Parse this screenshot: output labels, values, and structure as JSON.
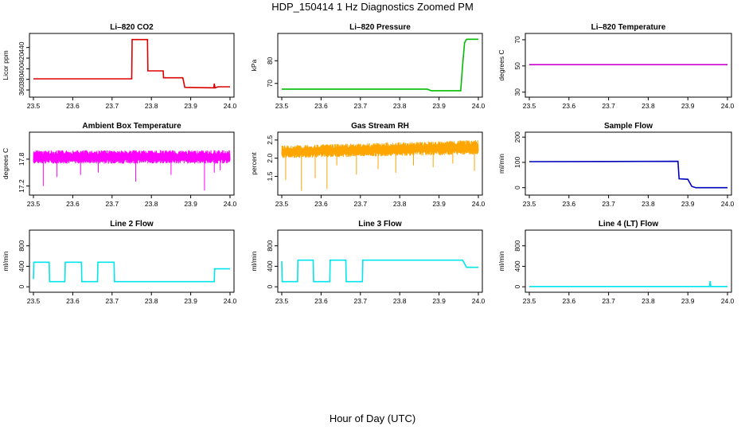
{
  "title": "HDP_150414  1 Hz Diagnostics Zoomed PM",
  "xlabel": "Hour of Day (UTC)",
  "chart_data": [
    {
      "type": "line",
      "title": "Li–820 CO2",
      "ylabel": "Licor ppm",
      "color": "#dd0000",
      "xlim": [
        23.5,
        24.0
      ],
      "ylim": [
        351,
        462
      ],
      "xticks": [
        23.5,
        23.6,
        23.7,
        23.8,
        23.9,
        24.0
      ],
      "xtick_labels": [
        "23.5",
        "23.6",
        "23.7",
        "23.8",
        "23.9",
        "24.0"
      ],
      "yticks": [
        360,
        380,
        400,
        420,
        440
      ],
      "ytick_labels": [
        "360",
        "380",
        "400",
        "420",
        "440"
      ],
      "series": [
        {
          "x": [
            23.5,
            23.75,
            23.751,
            23.79,
            23.791,
            23.83,
            23.831,
            23.88,
            23.885,
            23.959,
            23.96,
            23.962,
            23.97,
            24.0
          ],
          "y": [
            381,
            381,
            455,
            455,
            396,
            396,
            383,
            383,
            365,
            364,
            372,
            364,
            366,
            366
          ]
        }
      ]
    },
    {
      "type": "line",
      "title": "Li–820 Pressure",
      "ylabel": "kPa",
      "color": "#00bb00",
      "xlim": [
        23.5,
        24.0
      ],
      "ylim": [
        65,
        91
      ],
      "xticks": [
        23.5,
        23.6,
        23.7,
        23.8,
        23.9,
        24.0
      ],
      "xtick_labels": [
        "23.5",
        "23.6",
        "23.7",
        "23.8",
        "23.9",
        "24.0"
      ],
      "yticks": [
        70,
        80
      ],
      "ytick_labels": [
        "70",
        "80"
      ],
      "series": [
        {
          "x": [
            23.5,
            23.87,
            23.88,
            23.955,
            23.96,
            23.965,
            23.97,
            24.0
          ],
          "y": [
            67.5,
            67.5,
            66.8,
            66.8,
            78,
            88,
            89.5,
            89.5
          ]
        }
      ]
    },
    {
      "type": "line",
      "title": "Li–820 Temperature",
      "ylabel": "degrees C",
      "color": "#cc00cc",
      "xlim": [
        23.5,
        24.0
      ],
      "ylim": [
        28,
        73
      ],
      "xticks": [
        23.5,
        23.6,
        23.7,
        23.8,
        23.9,
        24.0
      ],
      "xtick_labels": [
        "23.5",
        "23.6",
        "23.7",
        "23.8",
        "23.9",
        "24.0"
      ],
      "yticks": [
        30,
        50,
        70
      ],
      "ytick_labels": [
        "30",
        "50",
        "70"
      ],
      "series": [
        {
          "x": [
            23.5,
            24.0
          ],
          "y": [
            51,
            51
          ]
        }
      ]
    },
    {
      "type": "line",
      "title": "Ambient Box Temperature",
      "ylabel": "degrees C",
      "color": "#ff00ff",
      "xlim": [
        23.5,
        24.0
      ],
      "ylim": [
        17.05,
        18.35
      ],
      "xticks": [
        23.5,
        23.6,
        23.7,
        23.8,
        23.9,
        24.0
      ],
      "xtick_labels": [
        "23.5",
        "23.6",
        "23.7",
        "23.8",
        "23.9",
        "24.0"
      ],
      "yticks": [
        17.2,
        17.8
      ],
      "ytick_labels": [
        "17.2",
        "17.8"
      ],
      "series": [
        {
          "x": [
            23.5,
            24.0
          ],
          "band_low": 17.7,
          "band_high": 18.0,
          "mean": 17.85,
          "spikes": [
            [
              23.525,
              17.2
            ],
            [
              23.56,
              17.4
            ],
            [
              23.62,
              17.45
            ],
            [
              23.665,
              17.5
            ],
            [
              23.76,
              17.3
            ],
            [
              23.85,
              17.45
            ],
            [
              23.935,
              17.1
            ],
            [
              23.96,
              17.5
            ],
            [
              23.975,
              17.55
            ]
          ]
        }
      ]
    },
    {
      "type": "line",
      "title": "Gas Stream RH",
      "ylabel": "percent",
      "color": "#ffa500",
      "xlim": [
        23.5,
        24.0
      ],
      "ylim": [
        1.05,
        2.65
      ],
      "xticks": [
        23.5,
        23.6,
        23.7,
        23.8,
        23.9,
        24.0
      ],
      "xtick_labels": [
        "23.5",
        "23.6",
        "23.7",
        "23.8",
        "23.9",
        "24.0"
      ],
      "yticks": [
        1.5,
        2.0,
        2.5
      ],
      "ytick_labels": [
        "1.5",
        "2.0",
        "2.5"
      ],
      "series": [
        {
          "x": [
            23.5,
            24.0
          ],
          "band_low_start": 2.0,
          "band_low_end": 2.1,
          "band_high_start": 2.35,
          "band_high_end": 2.5,
          "mean": 2.2,
          "spikes": [
            [
              23.51,
              1.4
            ],
            [
              23.55,
              1.1
            ],
            [
              23.585,
              1.45
            ],
            [
              23.615,
              1.15
            ],
            [
              23.64,
              1.8
            ],
            [
              23.69,
              1.55
            ],
            [
              23.745,
              1.7
            ],
            [
              23.79,
              1.6
            ],
            [
              23.835,
              1.8
            ],
            [
              23.885,
              1.75
            ],
            [
              23.935,
              1.85
            ],
            [
              23.99,
              1.65
            ]
          ]
        }
      ]
    },
    {
      "type": "line",
      "title": "Sample Flow",
      "ylabel": "ml/min",
      "color": "#0000bb",
      "xlim": [
        23.5,
        24.0
      ],
      "ylim": [
        -20,
        210
      ],
      "xticks": [
        23.5,
        23.6,
        23.7,
        23.8,
        23.9,
        24.0
      ],
      "xtick_labels": [
        "23.5",
        "23.6",
        "23.7",
        "23.8",
        "23.9",
        "24.0"
      ],
      "yticks": [
        0,
        100,
        200
      ],
      "ytick_labels": [
        "0",
        "100",
        "200"
      ],
      "series": [
        {
          "x": [
            23.5,
            23.875,
            23.878,
            23.9,
            23.91,
            23.92,
            24.0
          ],
          "y": [
            103,
            104,
            35,
            33,
            5,
            0,
            0
          ]
        }
      ]
    },
    {
      "type": "line",
      "title": "Line 2 Flow",
      "ylabel": "ml/min",
      "color": "#00e5ee",
      "xlim": [
        23.5,
        24.0
      ],
      "ylim": [
        -60,
        1060
      ],
      "xticks": [
        23.5,
        23.6,
        23.7,
        23.8,
        23.9,
        24.0
      ],
      "xtick_labels": [
        "23.5",
        "23.6",
        "23.7",
        "23.8",
        "23.9",
        "24.0"
      ],
      "yticks": [
        0,
        400,
        800
      ],
      "ytick_labels": [
        "0",
        "400",
        "800"
      ],
      "series": [
        {
          "x": [
            23.5,
            23.501,
            23.54,
            23.541,
            23.58,
            23.581,
            23.622,
            23.623,
            23.663,
            23.664,
            23.705,
            23.706,
            23.96,
            23.961,
            24.0
          ],
          "y": [
            150,
            480,
            480,
            100,
            100,
            480,
            480,
            100,
            100,
            480,
            480,
            100,
            100,
            350,
            350
          ]
        }
      ]
    },
    {
      "type": "line",
      "title": "Line 3 Flow",
      "ylabel": "ml/min",
      "color": "#00e5ee",
      "xlim": [
        23.5,
        24.0
      ],
      "ylim": [
        -60,
        1060
      ],
      "xticks": [
        23.5,
        23.6,
        23.7,
        23.8,
        23.9,
        24.0
      ],
      "xtick_labels": [
        "23.5",
        "23.6",
        "23.7",
        "23.8",
        "23.9",
        "24.0"
      ],
      "yticks": [
        0,
        400,
        800
      ],
      "ytick_labels": [
        "0",
        "400",
        "800"
      ],
      "series": [
        {
          "x": [
            23.5,
            23.501,
            23.54,
            23.541,
            23.58,
            23.581,
            23.622,
            23.623,
            23.663,
            23.664,
            23.705,
            23.706,
            23.96,
            23.97,
            24.0
          ],
          "y": [
            500,
            100,
            100,
            520,
            520,
            100,
            100,
            520,
            520,
            100,
            100,
            520,
            520,
            380,
            380
          ]
        }
      ]
    },
    {
      "type": "line",
      "title": "Line 4 (LT) Flow",
      "ylabel": "ml/min",
      "color": "#00e5ee",
      "xlim": [
        23.5,
        24.0
      ],
      "ylim": [
        -60,
        1060
      ],
      "xticks": [
        23.5,
        23.6,
        23.7,
        23.8,
        23.9,
        24.0
      ],
      "xtick_labels": [
        "23.5",
        "23.6",
        "23.7",
        "23.8",
        "23.9",
        "24.0"
      ],
      "yticks": [
        0,
        400,
        800
      ],
      "ytick_labels": [
        "0",
        "400",
        "800"
      ],
      "series": [
        {
          "x": [
            23.5,
            23.955,
            23.956,
            23.958,
            23.96,
            24.0
          ],
          "y": [
            5,
            5,
            110,
            5,
            5,
            5
          ]
        }
      ]
    }
  ]
}
